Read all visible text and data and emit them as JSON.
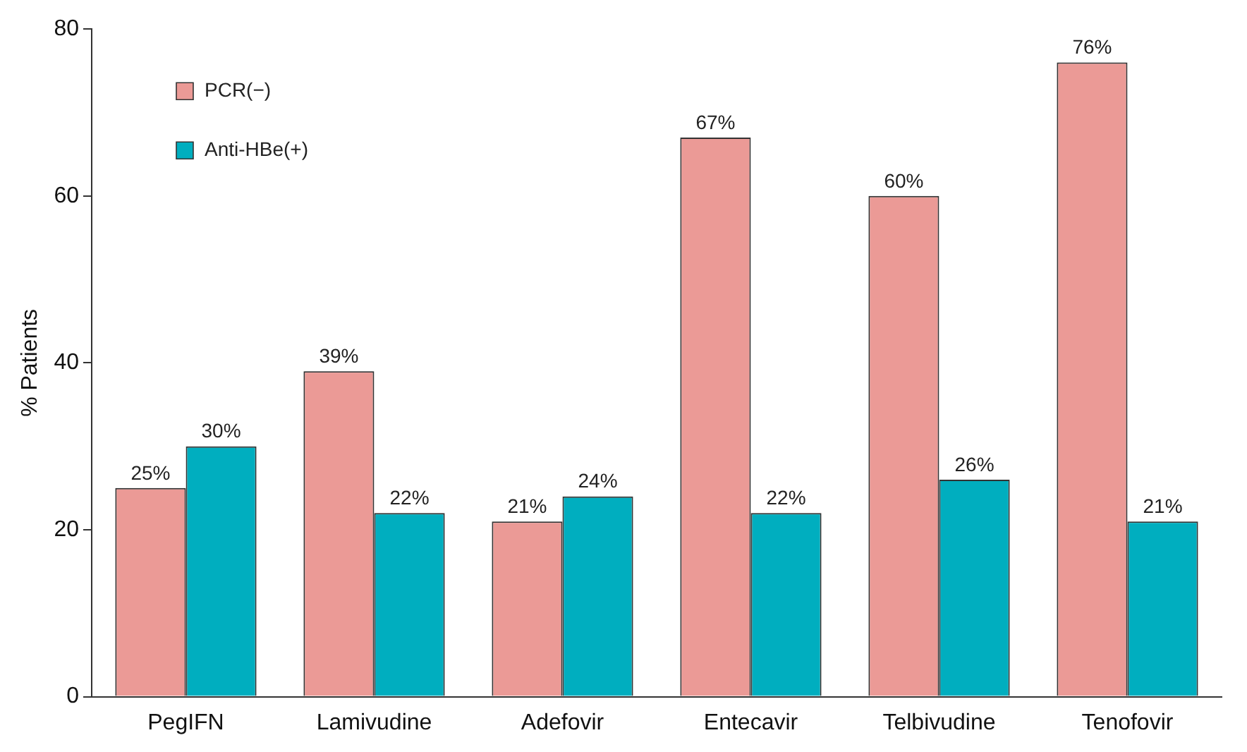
{
  "chart_data": {
    "type": "bar",
    "ylabel": "% Patients",
    "categories": [
      "PegIFN",
      "Lamivudine",
      "Adefovir",
      "Entecavir",
      "Telbivudine",
      "Tenofovir"
    ],
    "series": [
      {
        "name": "PCR(−)",
        "color": "#eb9a96",
        "values": [
          25,
          39,
          21,
          67,
          60,
          76
        ],
        "value_labels": [
          "25%",
          "39%",
          "21%",
          "67%",
          "60%",
          "76%"
        ]
      },
      {
        "name": "Anti-HBe(+)",
        "color": "#00aebf",
        "values": [
          30,
          22,
          24,
          22,
          26,
          21
        ],
        "value_labels": [
          "30%",
          "22%",
          "24%",
          "22%",
          "26%",
          "21%"
        ]
      }
    ],
    "ylim": [
      0,
      80
    ],
    "yticks": [
      0,
      20,
      40,
      60,
      80
    ],
    "grid": false,
    "legend": "top left"
  }
}
